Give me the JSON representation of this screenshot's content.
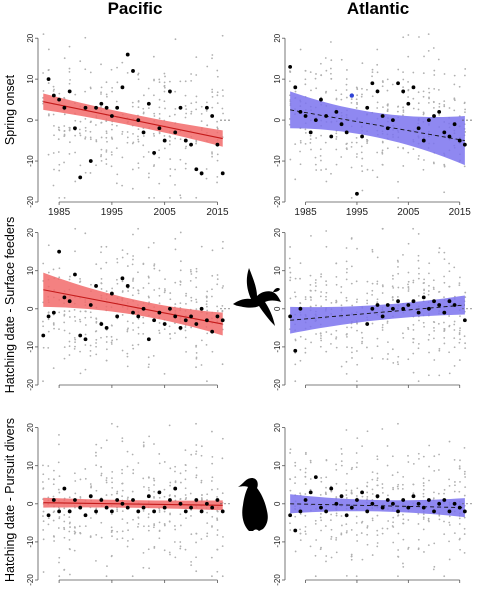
{
  "figure": {
    "column_titles": [
      "Pacific",
      "Atlantic"
    ],
    "row_titles": [
      "Spring onset",
      "Hatching date - Surface feeders",
      "Hatching date - Pursuit divers"
    ],
    "icons": [
      "flying-seabird-icon",
      "diving-seabird-icon"
    ],
    "colors": {
      "pacific_band": "#f26b6b",
      "pacific_line": "#c41a1a",
      "atlantic_band": "#7b73ee",
      "atlantic_line": "#1e1e9a",
      "raw_points": "#b0b0b0",
      "mean_points": "#000000",
      "highlight_point": "#2f43d6"
    }
  },
  "chart_data": [
    {
      "type": "scatter",
      "region": "Pacific",
      "row": "Spring onset",
      "xlim": [
        1981,
        2017
      ],
      "ylim": [
        -20,
        22
      ],
      "xticks": [
        "1985",
        "1995",
        "2005",
        "2015"
      ],
      "yticks": [
        "-20",
        "-10",
        "0",
        "10",
        "20"
      ],
      "ylabel": "Spring onset",
      "show_x_tick_labels": true,
      "trend": {
        "style": "solid",
        "start": [
          1982,
          4.5
        ],
        "end": [
          2016,
          -4.5
        ],
        "band_half_width": [
          2.0,
          1.4,
          2.0
        ]
      },
      "means": {
        "x": [
          1983,
          1984,
          1985,
          1986,
          1987,
          1988,
          1989,
          1990,
          1991,
          1992,
          1993,
          1994,
          1995,
          1996,
          1997,
          1998,
          1999,
          2000,
          2001,
          2002,
          2003,
          2004,
          2005,
          2006,
          2007,
          2008,
          2009,
          2010,
          2011,
          2012,
          2013,
          2014,
          2015,
          2016
        ],
        "y": [
          10,
          6,
          5,
          3,
          7,
          -2,
          -14,
          3,
          -10,
          3,
          4,
          3,
          1,
          3,
          8,
          16,
          12,
          0,
          -3,
          4,
          -8,
          -2,
          -5,
          7,
          -3,
          3,
          -5,
          -6,
          -12,
          -13,
          3,
          1,
          -6,
          -13
        ]
      },
      "highlight": []
    },
    {
      "type": "scatter",
      "region": "Atlantic",
      "row": "Spring onset",
      "xlim": [
        1981,
        2017
      ],
      "ylim": [
        -20,
        22
      ],
      "xticks": [
        "1985",
        "1995",
        "2005",
        "2015"
      ],
      "yticks": [
        "-20",
        "-10",
        "0",
        "10",
        "20"
      ],
      "ylabel": "",
      "show_x_tick_labels": true,
      "trend": {
        "style": "dashed",
        "start": [
          1982,
          2.5
        ],
        "end": [
          2016,
          -5
        ],
        "band_half_width": [
          4.5,
          3.0,
          6.0
        ]
      },
      "means": {
        "x": [
          1982,
          1983,
          1984,
          1985,
          1986,
          1987,
          1988,
          1989,
          1990,
          1991,
          1992,
          1993,
          1995,
          1996,
          1997,
          1998,
          1999,
          2000,
          2001,
          2002,
          2003,
          2004,
          2005,
          2006,
          2007,
          2008,
          2009,
          2010,
          2011,
          2012,
          2013,
          2014,
          2015,
          2016
        ],
        "y": [
          13,
          8,
          2,
          1,
          -3,
          0,
          5,
          1,
          -4,
          2,
          -1,
          -3,
          -18,
          -4,
          3,
          9,
          7,
          1,
          -2,
          0,
          9,
          7,
          4,
          8,
          -2,
          -5,
          0,
          1,
          2,
          -3,
          -4,
          -1,
          -5,
          -6
        ]
      },
      "highlight": [
        {
          "x": 1994,
          "y": 6
        }
      ]
    },
    {
      "type": "scatter",
      "region": "Pacific",
      "row": "Hatching date - Surface feeders",
      "xlim": [
        1981,
        2017
      ],
      "ylim": [
        -20,
        22
      ],
      "xticks": [
        "1985",
        "1995",
        "2005",
        "2015"
      ],
      "yticks": [
        "-20",
        "-10",
        "0",
        "10",
        "20"
      ],
      "ylabel": "Hatching date - Surface feeders",
      "show_x_tick_labels": false,
      "trend": {
        "style": "solid",
        "start": [
          1982,
          5
        ],
        "end": [
          2016,
          -4
        ],
        "band_half_width": [
          4.5,
          2.0,
          3.0
        ]
      },
      "means": {
        "x": [
          1982,
          1983,
          1984,
          1985,
          1986,
          1987,
          1988,
          1989,
          1990,
          1991,
          1992,
          1993,
          1994,
          1995,
          1996,
          1997,
          1998,
          1999,
          2000,
          2001,
          2002,
          2003,
          2004,
          2005,
          2006,
          2007,
          2008,
          2009,
          2010,
          2011,
          2012,
          2013,
          2014,
          2015,
          2016
        ],
        "y": [
          -7,
          -2,
          -1,
          15,
          3,
          2,
          9,
          -7,
          -8,
          1,
          6,
          -4,
          -5,
          4,
          -2,
          8,
          6,
          -1,
          -2,
          0,
          -8,
          -3,
          -1,
          -4,
          0,
          -2,
          -5,
          -3,
          -2,
          -4,
          0,
          -3,
          -6,
          -2,
          -3
        ]
      },
      "highlight": []
    },
    {
      "type": "scatter",
      "region": "Atlantic",
      "row": "Hatching date - Surface feeders",
      "xlim": [
        1981,
        2017
      ],
      "ylim": [
        -20,
        22
      ],
      "xticks": [
        "1985",
        "1995",
        "2005",
        "2015"
      ],
      "yticks": [
        "-20",
        "-10",
        "0",
        "10",
        "20"
      ],
      "ylabel": "",
      "show_x_tick_labels": false,
      "trend": {
        "style": "dashed",
        "start": [
          1982,
          -3
        ],
        "end": [
          2016,
          1
        ],
        "band_half_width": [
          3.5,
          2.0,
          2.5
        ]
      },
      "means": {
        "x": [
          1982,
          1983,
          1984,
          1997,
          1998,
          1999,
          2000,
          2001,
          2002,
          2003,
          2004,
          2005,
          2006,
          2007,
          2008,
          2009,
          2010,
          2011,
          2012,
          2013,
          2014,
          2016
        ],
        "y": [
          -2,
          -11,
          0,
          -4,
          0,
          1,
          -2,
          1,
          0,
          2,
          0,
          1,
          2,
          -1,
          3,
          0,
          2,
          1,
          -1,
          2,
          1,
          -3
        ]
      },
      "highlight": []
    },
    {
      "type": "scatter",
      "region": "Pacific",
      "row": "Hatching date - Pursuit divers",
      "xlim": [
        1981,
        2017
      ],
      "ylim": [
        -20,
        22
      ],
      "xticks": [
        "1985",
        "1995",
        "2005",
        "2015"
      ],
      "yticks": [
        "-20",
        "-10",
        "0",
        "10",
        "20"
      ],
      "ylabel": "Hatching date - Pursuit divers",
      "show_x_tick_labels": false,
      "trend": {
        "style": "solid",
        "start": [
          1982,
          0.3
        ],
        "end": [
          2016,
          -0.4
        ],
        "band_half_width": [
          1.3,
          1.0,
          1.3
        ]
      },
      "means": {
        "x": [
          1983,
          1984,
          1985,
          1986,
          1987,
          1988,
          1989,
          1990,
          1991,
          1992,
          1993,
          1994,
          1995,
          1996,
          1997,
          1998,
          1999,
          2000,
          2001,
          2002,
          2003,
          2004,
          2005,
          2006,
          2007,
          2008,
          2009,
          2010,
          2011,
          2012,
          2013,
          2014,
          2015,
          2016
        ],
        "y": [
          -3,
          1,
          -2,
          4,
          -2,
          1,
          -1,
          -3,
          2,
          -2,
          1,
          -1,
          -2,
          1,
          0,
          -1,
          1,
          -2,
          -1,
          2,
          -2,
          3,
          -1,
          1,
          4,
          0,
          -2,
          -1,
          1,
          -2,
          0,
          -1,
          1,
          -2
        ]
      },
      "highlight": []
    },
    {
      "type": "scatter",
      "region": "Atlantic",
      "row": "Hatching date - Pursuit divers",
      "xlim": [
        1981,
        2017
      ],
      "ylim": [
        -20,
        22
      ],
      "xticks": [
        "1985",
        "1995",
        "2005",
        "2015"
      ],
      "yticks": [
        "-20",
        "-10",
        "0",
        "10",
        "20"
      ],
      "ylabel": "",
      "show_x_tick_labels": false,
      "trend": {
        "style": "dashed",
        "start": [
          1982,
          0
        ],
        "end": [
          2016,
          -1
        ],
        "band_half_width": [
          2.5,
          1.5,
          2.5
        ]
      },
      "means": {
        "x": [
          1982,
          1983,
          1984,
          1985,
          1986,
          1987,
          1988,
          1989,
          1990,
          1991,
          1992,
          1993,
          1994,
          1995,
          1996,
          1997,
          1998,
          1999,
          2000,
          2001,
          2002,
          2003,
          2004,
          2005,
          2006,
          2007,
          2008,
          2009,
          2010,
          2011,
          2012,
          2013,
          2014,
          2015,
          2016
        ],
        "y": [
          -3,
          -7,
          -2,
          1,
          3,
          7,
          -1,
          -2,
          4,
          0,
          2,
          -3,
          -1,
          1,
          3,
          -2,
          0,
          2,
          -1,
          1,
          0,
          -2,
          1,
          -1,
          2,
          0,
          -1,
          1,
          -2,
          0,
          1,
          -2,
          0,
          -1,
          -2
        ]
      },
      "highlight": []
    }
  ]
}
